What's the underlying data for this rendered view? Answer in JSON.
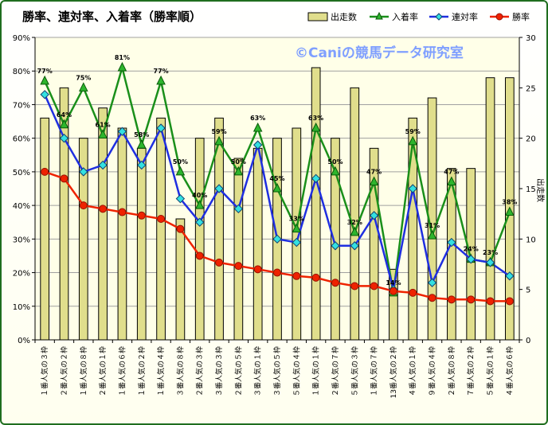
{
  "chart_data": {
    "type": "bar",
    "title": "勝率、連対率、入着率（勝率順）",
    "watermark": "©Caniの競馬データ研究室",
    "ylabel_right": "出走数",
    "legend_position": "top-right",
    "grid": true,
    "y_left_ticks": [
      "0%",
      "10%",
      "20%",
      "30%",
      "40%",
      "50%",
      "60%",
      "70%",
      "80%",
      "90%"
    ],
    "y_right_ticks": [
      "0",
      "5",
      "10",
      "15",
      "20",
      "25",
      "30"
    ],
    "ylim_left": [
      0,
      90
    ],
    "ylim_right": [
      0,
      30
    ],
    "categories": [
      "１番人気の３枠",
      "２番人気の２枠",
      "１番人気の８枠",
      "２番人気の１枠",
      "１番人気の６枠",
      "１番人気の２枠",
      "１番人気の４枠",
      "３番人気の８枠",
      "２番人気の３枠",
      "３番人気の３枠",
      "２番人気の５枠",
      "３番人気の１枠",
      "３番人気の５枠",
      "５番人気の４枠",
      "１番人気の１枠",
      "２番人気の７枠",
      "５番人気の３枠",
      "１番人気の７枠",
      "13番人気の２枠",
      "４番人気の１枠",
      "９番人気の４枠",
      "２番人気の８枠",
      "７番人気の２枠",
      "５番人気の１枠",
      "４番人気の６枠"
    ],
    "colors": {
      "bar": "#e0de8c",
      "bar_stroke": "#000000",
      "place": "#1a8f1a",
      "rentai": "#1f2fe0",
      "win": "#ee2200",
      "plot_bg": "#ffffe8",
      "grid": "#a0a0a0"
    },
    "series": [
      {
        "name": "出走数",
        "kind": "bar",
        "axis": "right",
        "values": [
          22,
          25,
          20,
          23,
          21,
          19,
          22,
          12,
          20,
          22,
          18,
          19,
          20,
          21,
          27,
          20,
          25,
          19,
          7,
          22,
          24,
          17,
          17,
          26,
          26
        ]
      },
      {
        "name": "入着率",
        "kind": "line",
        "axis": "left",
        "marker": "triangle",
        "values": [
          77,
          64,
          75,
          61,
          81,
          58,
          77,
          50,
          40,
          59,
          50,
          63,
          45,
          33,
          63,
          50,
          32,
          47,
          14,
          59,
          31,
          47,
          24,
          23,
          38
        ]
      },
      {
        "name": "連対率",
        "kind": "line",
        "axis": "left",
        "marker": "diamond",
        "values": [
          73,
          60,
          50,
          52,
          62,
          52,
          63,
          42,
          35,
          45,
          39,
          58,
          30,
          29,
          48,
          28,
          28,
          37,
          15,
          45,
          17,
          29,
          24,
          23,
          19
        ]
      },
      {
        "name": "勝率",
        "kind": "line",
        "axis": "left",
        "marker": "circle",
        "values": [
          50,
          48,
          40,
          39,
          38,
          37,
          36,
          33,
          25,
          23,
          22,
          21,
          20,
          19,
          18.5,
          17,
          16,
          16,
          14.5,
          14,
          12.5,
          12,
          12,
          11.5,
          11.5
        ]
      }
    ],
    "data_labels": [
      "77%",
      "64%",
      "75%",
      "61%",
      "81%",
      "58%",
      "77%",
      "50%",
      "40%",
      "59%",
      "50%",
      "63%",
      "45%",
      "33%",
      "63%",
      "50%",
      "32%",
      "47%",
      "14%",
      "59%",
      "31%",
      "47%",
      "24%",
      "23%",
      "38%"
    ]
  }
}
